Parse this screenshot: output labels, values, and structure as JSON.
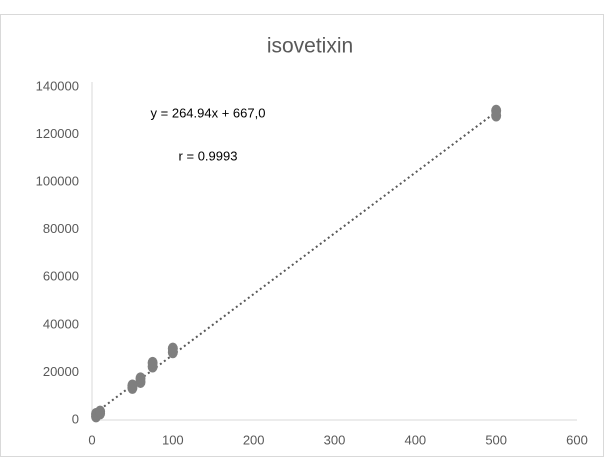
{
  "chart_data": {
    "type": "scatter",
    "title": "isovetixin",
    "annotations": [
      "y = 264.94x + 667,0",
      "r = 0.9993"
    ],
    "x": [
      5,
      5,
      10,
      10,
      50,
      50,
      60,
      60,
      75,
      75,
      100,
      100,
      500,
      500
    ],
    "series": [
      {
        "color": "#7f7f7f",
        "values": [
          1500,
          2500,
          2800,
          3500,
          13500,
          14500,
          16000,
          17500,
          22500,
          24000,
          28500,
          30000,
          128000,
          130000
        ]
      }
    ],
    "trendline": true,
    "xlim": [
      0,
      600
    ],
    "xticks": [
      0,
      100,
      200,
      300,
      400,
      500,
      600
    ],
    "ylim": [
      0,
      140000
    ],
    "yticks": [
      0,
      20000,
      40000,
      60000,
      80000,
      100000,
      120000,
      140000
    ],
    "grid": false
  }
}
